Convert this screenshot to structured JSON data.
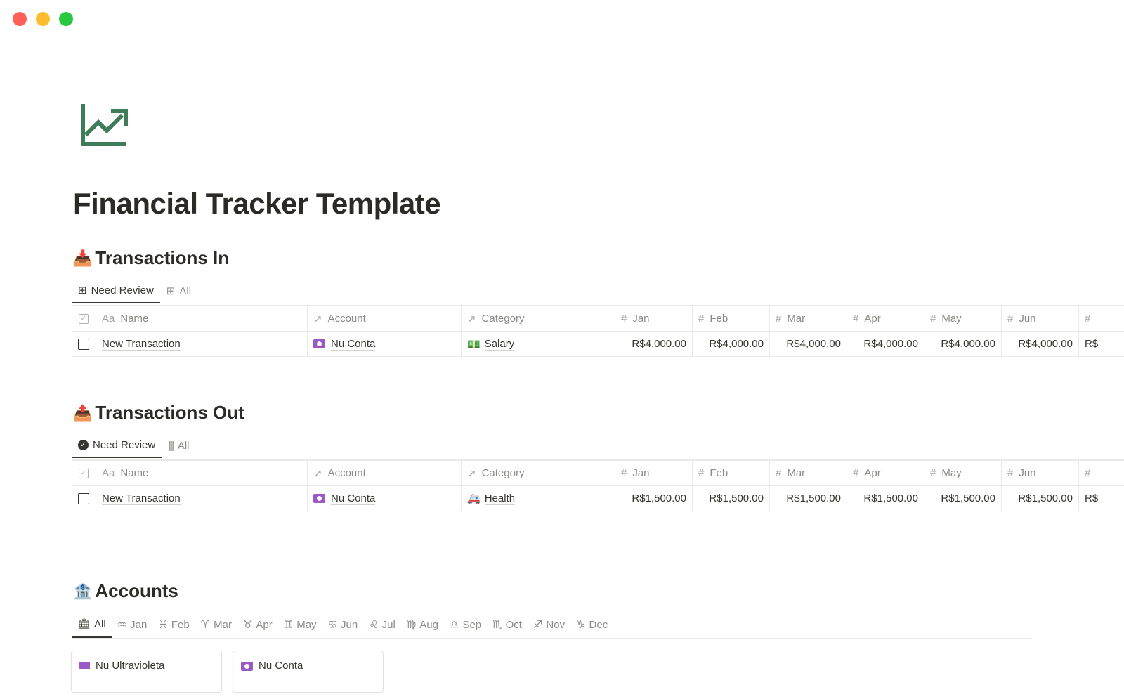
{
  "window": {
    "controls": [
      "#ff5f57",
      "#febc2e",
      "#28c840"
    ]
  },
  "page": {
    "title": "Financial Tracker Template",
    "icon": "chart-trending-up-icon",
    "icon_color": "#3f7d5a"
  },
  "columns": {
    "name": "Name",
    "account": "Account",
    "category": "Category",
    "months": [
      "Jan",
      "Feb",
      "Mar",
      "Apr",
      "May",
      "Jun",
      ""
    ]
  },
  "transactions_in": {
    "title": "Transactions In",
    "emoji": "📥",
    "tabs": [
      {
        "label": "Need Review",
        "icon": "table-icon"
      },
      {
        "label": "All",
        "icon": "table-icon"
      }
    ],
    "rows": [
      {
        "name": "New Transaction",
        "account": "Nu Conta",
        "category": "Salary",
        "category_emoji": "💵",
        "values": [
          "R$4,000.00",
          "R$4,000.00",
          "R$4,000.00",
          "R$4,000.00",
          "R$4,000.00",
          "R$4,000.00",
          "R$"
        ]
      }
    ]
  },
  "transactions_out": {
    "title": "Transactions Out",
    "emoji": "📤",
    "tabs": [
      {
        "label": "Need Review",
        "icon": "check-circle-icon"
      },
      {
        "label": "All",
        "icon": "barcode-icon"
      }
    ],
    "rows": [
      {
        "name": "New Transaction",
        "account": "Nu Conta",
        "category": "Health",
        "category_emoji": "🚑",
        "values": [
          "R$1,500.00",
          "R$1,500.00",
          "R$1,500.00",
          "R$1,500.00",
          "R$1,500.00",
          "R$1,500.00",
          "R$"
        ]
      }
    ]
  },
  "accounts": {
    "title": "Accounts",
    "emoji": "🏦",
    "tabs": [
      {
        "label": "All",
        "glyph": "🏛"
      },
      {
        "label": "Jan",
        "glyph": "♒"
      },
      {
        "label": "Feb",
        "glyph": "♓"
      },
      {
        "label": "Mar",
        "glyph": "♈"
      },
      {
        "label": "Apr",
        "glyph": "♉"
      },
      {
        "label": "May",
        "glyph": "♊"
      },
      {
        "label": "Jun",
        "glyph": "♋"
      },
      {
        "label": "Jul",
        "glyph": "♌"
      },
      {
        "label": "Aug",
        "glyph": "♍"
      },
      {
        "label": "Sep",
        "glyph": "♎"
      },
      {
        "label": "Oct",
        "glyph": "♏"
      },
      {
        "label": "Nov",
        "glyph": "♐"
      },
      {
        "label": "Dec",
        "glyph": "♑"
      }
    ],
    "cards": [
      {
        "name": "Nu Ultravioleta"
      },
      {
        "name": "Nu Conta"
      }
    ]
  }
}
